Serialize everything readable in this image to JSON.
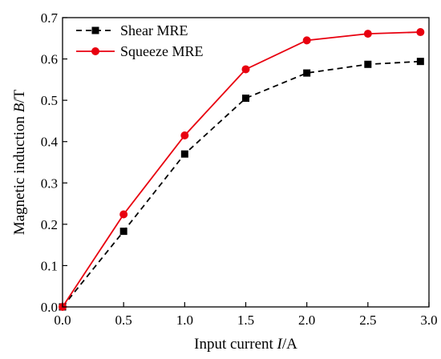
{
  "chart_data": {
    "type": "line",
    "xlabel": {
      "prefix": "Input current ",
      "var": "I",
      "suffix": "/A"
    },
    "ylabel": {
      "prefix": "Magnetic induction ",
      "var": "B",
      "suffix": "/T"
    },
    "xlim": [
      0,
      3.0
    ],
    "ylim": [
      0,
      0.7
    ],
    "xticks": [
      "0.0",
      "0.5",
      "1.0",
      "1.5",
      "2.0",
      "2.5",
      "3.0"
    ],
    "yticks": [
      "0.0",
      "0.1",
      "0.2",
      "0.3",
      "0.4",
      "0.5",
      "0.6",
      "0.7"
    ],
    "grid": false,
    "legend_position": "top-left",
    "series": [
      {
        "name": "Shear MRE",
        "color": "#000000",
        "line_style": "dashed",
        "marker": "square",
        "x": [
          0,
          0.5,
          1.0,
          1.5,
          2.0,
          2.5,
          2.93
        ],
        "y": [
          0.0,
          0.183,
          0.37,
          0.505,
          0.566,
          0.587,
          0.594
        ]
      },
      {
        "name": "Squeeze MRE",
        "color": "#e8000f",
        "line_style": "solid",
        "marker": "circle",
        "x": [
          0,
          0.5,
          1.0,
          1.5,
          2.0,
          2.5,
          2.93
        ],
        "y": [
          0.0,
          0.224,
          0.415,
          0.575,
          0.645,
          0.661,
          0.665
        ]
      }
    ]
  }
}
